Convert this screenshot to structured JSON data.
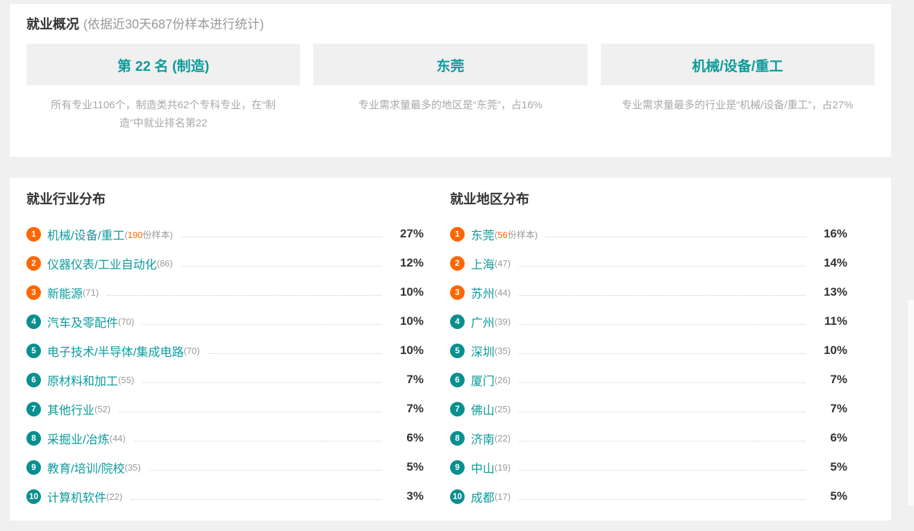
{
  "overview": {
    "title": "就业概况",
    "subtitle": "(依据近30天687份样本进行统计)",
    "cards": [
      {
        "title": "第 22 名 (制造)",
        "desc": "所有专业1106个，制造类共62个专科专业，在“制造”中就业排名第22"
      },
      {
        "title": "东莞",
        "desc": "专业需求量最多的地区是“东莞”，占16%"
      },
      {
        "title": "机械/设备/重工",
        "desc": "专业需求量最多的行业是“机械/设备/重工”，占27%"
      }
    ]
  },
  "industry": {
    "title": "就业行业分布",
    "items": [
      {
        "rank": "1",
        "name": "机械/设备/重工",
        "count_open": "(",
        "count_num": "190",
        "count_close": "份样本)",
        "percent": "27%"
      },
      {
        "rank": "2",
        "name": "仪器仪表/工业自动化",
        "count_open": "(",
        "count_num": "86",
        "count_close": ")",
        "percent": "12%"
      },
      {
        "rank": "3",
        "name": "新能源",
        "count_open": "(",
        "count_num": "71",
        "count_close": ")",
        "percent": "10%"
      },
      {
        "rank": "4",
        "name": "汽车及零配件",
        "count_open": "(",
        "count_num": "70",
        "count_close": ")",
        "percent": "10%"
      },
      {
        "rank": "5",
        "name": "电子技术/半导体/集成电路",
        "count_open": "(",
        "count_num": "70",
        "count_close": ")",
        "percent": "10%"
      },
      {
        "rank": "6",
        "name": "原材料和加工",
        "count_open": "(",
        "count_num": "55",
        "count_close": ")",
        "percent": "7%"
      },
      {
        "rank": "7",
        "name": "其他行业",
        "count_open": "(",
        "count_num": "52",
        "count_close": ")",
        "percent": "7%"
      },
      {
        "rank": "8",
        "name": "采掘业/冶炼",
        "count_open": "(",
        "count_num": "44",
        "count_close": ")",
        "percent": "6%"
      },
      {
        "rank": "9",
        "name": "教育/培训/院校",
        "count_open": "(",
        "count_num": "35",
        "count_close": ")",
        "percent": "5%"
      },
      {
        "rank": "10",
        "name": "计算机软件",
        "count_open": "(",
        "count_num": "22",
        "count_close": ")",
        "percent": "3%"
      }
    ]
  },
  "region": {
    "title": "就业地区分布",
    "items": [
      {
        "rank": "1",
        "name": "东莞",
        "count_open": "(",
        "count_num": "56",
        "count_close": "份样本)",
        "percent": "16%"
      },
      {
        "rank": "2",
        "name": "上海",
        "count_open": "(",
        "count_num": "47",
        "count_close": ")",
        "percent": "14%"
      },
      {
        "rank": "3",
        "name": "苏州",
        "count_open": "(",
        "count_num": "44",
        "count_close": ")",
        "percent": "13%"
      },
      {
        "rank": "4",
        "name": "广州",
        "count_open": "(",
        "count_num": "39",
        "count_close": ")",
        "percent": "11%"
      },
      {
        "rank": "5",
        "name": "深圳",
        "count_open": "(",
        "count_num": "35",
        "count_close": ")",
        "percent": "10%"
      },
      {
        "rank": "6",
        "name": "厦门",
        "count_open": "(",
        "count_num": "26",
        "count_close": ")",
        "percent": "7%"
      },
      {
        "rank": "7",
        "name": "佛山",
        "count_open": "(",
        "count_num": "25",
        "count_close": ")",
        "percent": "7%"
      },
      {
        "rank": "8",
        "name": "济南",
        "count_open": "(",
        "count_num": "22",
        "count_close": ")",
        "percent": "6%"
      },
      {
        "rank": "9",
        "name": "中山",
        "count_open": "(",
        "count_num": "19",
        "count_close": ")",
        "percent": "5%"
      },
      {
        "rank": "10",
        "name": "成都",
        "count_open": "(",
        "count_num": "17",
        "count_close": ")",
        "percent": "5%"
      }
    ]
  },
  "colors": {
    "accent_teal": "#0d9b9b",
    "badge_teal": "#0a8f8f",
    "accent_orange": "#ff6600",
    "page_bg": "#f0f0f0",
    "panel_bg": "#ffffff",
    "card_header_bg": "#f0f0f0",
    "text_dark": "#333333",
    "text_gray": "#999999"
  }
}
